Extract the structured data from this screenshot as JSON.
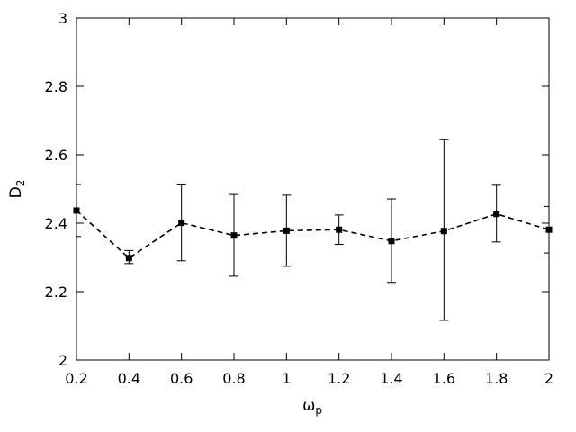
{
  "chart_data": {
    "type": "line",
    "xlabel": "ω",
    "xlabel_sub": "p",
    "ylabel": "D",
    "ylabel_sub": "2",
    "xlim": [
      0.2,
      2.0
    ],
    "ylim": [
      2.0,
      3.0
    ],
    "xticks": [
      0.2,
      0.4,
      0.6,
      0.8,
      1.0,
      1.2,
      1.4,
      1.6,
      1.8,
      2.0
    ],
    "xtick_labels": [
      "0.2",
      "0.4",
      "0.6",
      "0.8",
      "1",
      "1.2",
      "1.4",
      "1.6",
      "1.8",
      "2"
    ],
    "yticks": [
      2.0,
      2.2,
      2.4,
      2.6,
      2.8,
      3.0
    ],
    "ytick_labels": [
      "2",
      "2.2",
      "2.4",
      "2.6",
      "2.8",
      "3"
    ],
    "grid": false,
    "line_style": "dashed",
    "marker": "square",
    "color": "#000000",
    "series": [
      {
        "x": [
          0.2,
          0.4,
          0.6,
          0.8,
          1.0,
          1.2,
          1.4,
          1.6,
          1.8,
          2.0
        ],
        "y": [
          2.437,
          2.298,
          2.401,
          2.364,
          2.378,
          2.381,
          2.348,
          2.377,
          2.427,
          2.381
        ],
        "err_low": [
          2.361,
          2.282,
          2.29,
          2.245,
          2.274,
          2.338,
          2.227,
          2.116,
          2.345,
          2.313
        ],
        "err_high": [
          2.513,
          2.32,
          2.512,
          2.484,
          2.482,
          2.424,
          2.471,
          2.644,
          2.511,
          2.449
        ]
      }
    ]
  }
}
